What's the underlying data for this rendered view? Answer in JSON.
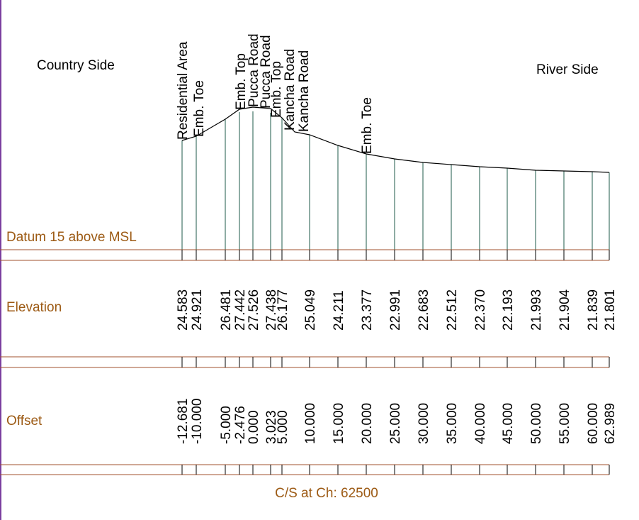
{
  "labels": {
    "country_side": "Country Side",
    "river_side": "River Side",
    "datum": "Datum 15 above MSL",
    "elevation": "Elevation",
    "offset": "Offset",
    "caption": "C/S at Ch: 62500"
  },
  "colors": {
    "frame": "#a0522d",
    "label": "#9c5a14",
    "verticals": "#1e5a4a",
    "profile": "#000000",
    "left_edge": "#7b3fa0"
  },
  "chart_data": {
    "type": "line",
    "title": "C/S at Ch: 62500",
    "datum": 15,
    "xlabel": "Offset",
    "ylabel": "Elevation",
    "points": [
      {
        "offset": "-12.681",
        "elevation": "24.583",
        "feature": "Residential Area"
      },
      {
        "offset": "-10.000",
        "elevation": "24.921",
        "feature": "Emb. Toe"
      },
      {
        "offset": "-5.000",
        "elevation": "26.481",
        "feature": ""
      },
      {
        "offset": "-2.476",
        "elevation": "27.442",
        "feature": "Emb. Top"
      },
      {
        "offset": "0.000",
        "elevation": "27.526",
        "feature": "Pucca Road"
      },
      {
        "offset": "3.023",
        "elevation": "27.438",
        "feature": "Pucca Road"
      },
      {
        "offset": "5.000",
        "elevation": "26.177",
        "feature": "Emb. Top"
      },
      {
        "offset": "",
        "elevation": "",
        "feature": "Kancha Road"
      },
      {
        "offset": "10.000",
        "elevation": "25.049",
        "feature": "Kancha Road"
      },
      {
        "offset": "15.000",
        "elevation": "24.211",
        "feature": ""
      },
      {
        "offset": "20.000",
        "elevation": "23.377",
        "feature": "Emb. Toe"
      },
      {
        "offset": "25.000",
        "elevation": "22.991",
        "feature": ""
      },
      {
        "offset": "30.000",
        "elevation": "22.683",
        "feature": ""
      },
      {
        "offset": "35.000",
        "elevation": "22.512",
        "feature": ""
      },
      {
        "offset": "40.000",
        "elevation": "22.370",
        "feature": ""
      },
      {
        "offset": "45.000",
        "elevation": "22.193",
        "feature": ""
      },
      {
        "offset": "50.000",
        "elevation": "21.993",
        "feature": ""
      },
      {
        "offset": "55.000",
        "elevation": "21.904",
        "feature": ""
      },
      {
        "offset": "60.000",
        "elevation": "21.839",
        "feature": ""
      },
      {
        "offset": "62.989",
        "elevation": "21.801",
        "feature": ""
      }
    ]
  }
}
